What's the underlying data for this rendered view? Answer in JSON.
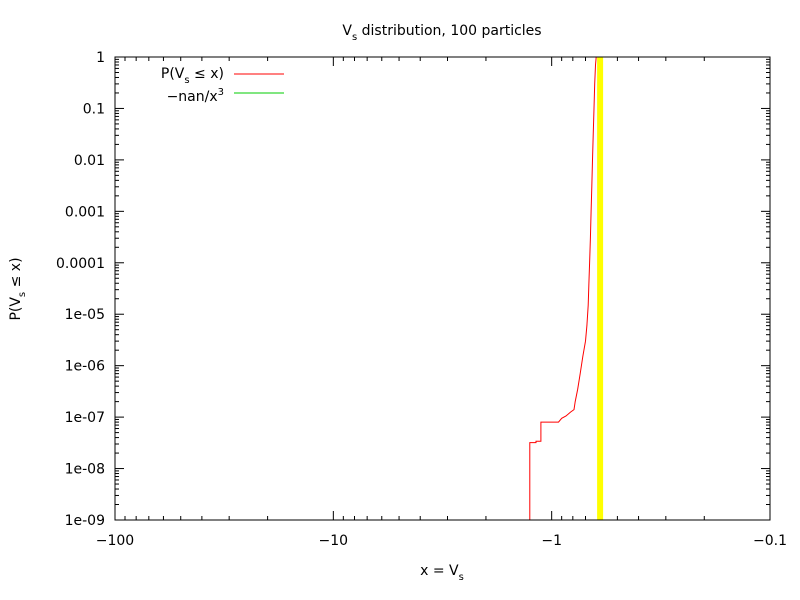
{
  "chart_data": {
    "type": "line",
    "title": "V",
    "title_sub": "s",
    "title_rest": " distribution, 100 particles",
    "xlabel": "x = V",
    "xlabel_sub": "s",
    "ylabel_prefix": "P(V",
    "ylabel_sub": "s",
    "ylabel_suffix": " ≤ x)",
    "x_scale": "log-negative",
    "y_scale": "log",
    "xlim": [
      -100,
      -0.1
    ],
    "ylim": [
      1e-09,
      1
    ],
    "x_ticks": [
      {
        "value": -100,
        "label": "−100"
      },
      {
        "value": -10,
        "label": "−10"
      },
      {
        "value": -1,
        "label": "−1"
      },
      {
        "value": -0.1,
        "label": "−0.1"
      }
    ],
    "y_ticks": [
      {
        "value": 1,
        "label": "1"
      },
      {
        "value": 0.1,
        "label": "0.1"
      },
      {
        "value": 0.01,
        "label": "0.01"
      },
      {
        "value": 0.001,
        "label": "0.001"
      },
      {
        "value": 0.0001,
        "label": "0.0001"
      },
      {
        "value": 1e-05,
        "label": "1e-05"
      },
      {
        "value": 1e-06,
        "label": "1e-06"
      },
      {
        "value": 1e-07,
        "label": "1e-07"
      },
      {
        "value": 1e-08,
        "label": "1e-08"
      },
      {
        "value": 1e-09,
        "label": "1e-09"
      }
    ],
    "legend_position": "top-left",
    "series": [
      {
        "name": "P(V s ≤ x)",
        "legend_parts": [
          "P(V",
          "s",
          " ≤ x)"
        ],
        "color": "#ff0000",
        "points": [
          {
            "x": -1.26,
            "y": 1e-09
          },
          {
            "x": -1.26,
            "y": 3.2e-08
          },
          {
            "x": -1.18,
            "y": 3.2e-08
          },
          {
            "x": -1.18,
            "y": 3.4e-08
          },
          {
            "x": -1.12,
            "y": 3.4e-08
          },
          {
            "x": -1.12,
            "y": 8e-08
          },
          {
            "x": -0.93,
            "y": 8e-08
          },
          {
            "x": -0.9,
            "y": 9.5e-08
          },
          {
            "x": -0.86,
            "y": 1.05e-07
          },
          {
            "x": -0.82,
            "y": 1.25e-07
          },
          {
            "x": -0.79,
            "y": 1.4e-07
          },
          {
            "x": -0.78,
            "y": 2e-07
          },
          {
            "x": -0.76,
            "y": 3.5e-07
          },
          {
            "x": -0.74,
            "y": 7e-07
          },
          {
            "x": -0.72,
            "y": 1.5e-06
          },
          {
            "x": -0.7,
            "y": 3e-06
          },
          {
            "x": -0.69,
            "y": 6e-06
          },
          {
            "x": -0.68,
            "y": 1.5e-05
          },
          {
            "x": -0.675,
            "y": 4e-05
          },
          {
            "x": -0.67,
            "y": 0.0001
          },
          {
            "x": -0.665,
            "y": 0.0003
          },
          {
            "x": -0.66,
            "y": 0.001
          },
          {
            "x": -0.655,
            "y": 0.003
          },
          {
            "x": -0.65,
            "y": 0.01
          },
          {
            "x": -0.645,
            "y": 0.03
          },
          {
            "x": -0.64,
            "y": 0.1
          },
          {
            "x": -0.635,
            "y": 0.3
          },
          {
            "x": -0.63,
            "y": 0.7
          },
          {
            "x": -0.625,
            "y": 1
          },
          {
            "x": -0.4,
            "y": 1
          },
          {
            "x": -0.1,
            "y": 1
          }
        ]
      },
      {
        "name": "−nan/x 3",
        "legend_parts": [
          "−nan/x",
          "3",
          ""
        ],
        "color": "#00cc00",
        "points": []
      }
    ],
    "vertical_lines": [
      {
        "x": -0.6,
        "color": "#ffff00"
      }
    ]
  }
}
